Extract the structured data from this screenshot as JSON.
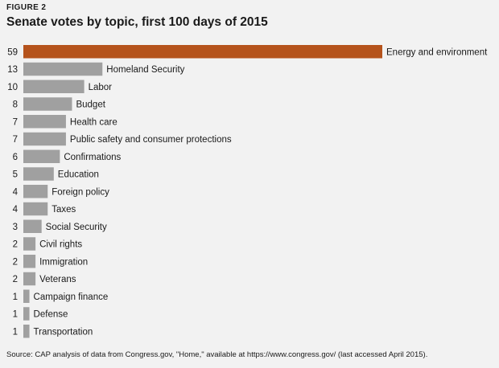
{
  "header": {
    "figure_label": "FIGURE 2",
    "title": "Senate votes by topic, first 100 days of 2015"
  },
  "source": "Source: CAP analysis of data from Congress.gov, \"Home,\" available at https://www.congress.gov/ (last accessed April 2015).",
  "colors": {
    "background": "#f2f2f2",
    "highlight": "#b5531c",
    "bar": "#a0a0a0"
  },
  "chart_data": {
    "type": "bar",
    "orientation": "horizontal",
    "title": "Senate votes by topic, first 100 days of 2015",
    "categories": [
      "Energy and environment",
      "Homeland Security",
      "Labor",
      "Budget",
      "Health care",
      "Public safety and consumer protections",
      "Confirmations",
      "Education",
      "Foreign policy",
      "Taxes",
      "Social Security",
      "Civil rights",
      "Immigration",
      "Veterans",
      "Campaign finance",
      "Defense",
      "Transportation"
    ],
    "values": [
      59,
      13,
      10,
      8,
      7,
      7,
      6,
      5,
      4,
      4,
      3,
      2,
      2,
      2,
      1,
      1,
      1
    ],
    "highlight_index": 0,
    "xlabel": "",
    "ylabel": "",
    "grid": false,
    "legend": "none"
  }
}
